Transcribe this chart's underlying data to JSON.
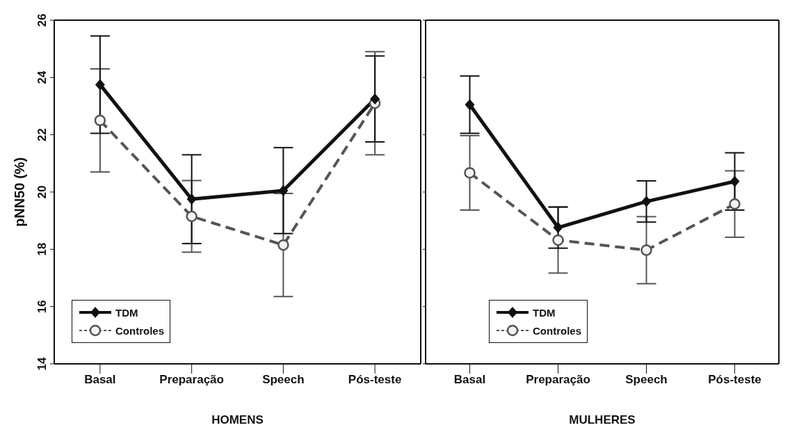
{
  "chart_data": [
    {
      "type": "line",
      "xlabel": "HOMENS",
      "ylabel": "pNN50 (%)",
      "categories": [
        "Basal",
        "Preparação",
        "Speech",
        "Pós-teste"
      ],
      "ylim": [
        14,
        26
      ],
      "yticks": [
        14,
        16,
        18,
        20,
        22,
        24,
        26
      ],
      "grid": false,
      "legend": "bottom left",
      "series": [
        {
          "name": "TDM",
          "color": "#111111",
          "marker": "diamond",
          "line_style": "solid",
          "values": [
            23.75,
            19.75,
            20.05,
            23.25
          ],
          "errors": [
            1.7,
            1.55,
            1.5,
            1.5
          ]
        },
        {
          "name": "Controles",
          "color": "#555555",
          "marker": "circle",
          "line_style": "dashed",
          "values": [
            22.5,
            19.15,
            18.15,
            23.1
          ],
          "errors": [
            1.8,
            1.25,
            1.8,
            1.8
          ]
        }
      ]
    },
    {
      "type": "line",
      "xlabel": "MULHERES",
      "categories": [
        "Basal",
        "Preparação",
        "Speech",
        "Pós-teste"
      ],
      "ylim": [
        14,
        26
      ],
      "yticks": [
        14,
        16,
        18,
        20,
        22,
        24,
        26
      ],
      "tick_labels": "x",
      "grid": false,
      "legend": "bottom left",
      "series": [
        {
          "name": "TDM",
          "color": "#111111",
          "marker": "diamond",
          "line_style": "solid",
          "values": [
            23.05,
            18.76,
            19.67,
            20.37
          ],
          "errors": [
            1.0,
            0.72,
            0.72,
            1.0
          ]
        },
        {
          "name": "Controles",
          "color": "#555555",
          "marker": "circle",
          "line_style": "dashed",
          "values": [
            20.67,
            18.32,
            17.97,
            19.58
          ],
          "errors": [
            1.3,
            1.15,
            1.17,
            1.16
          ]
        }
      ]
    }
  ]
}
